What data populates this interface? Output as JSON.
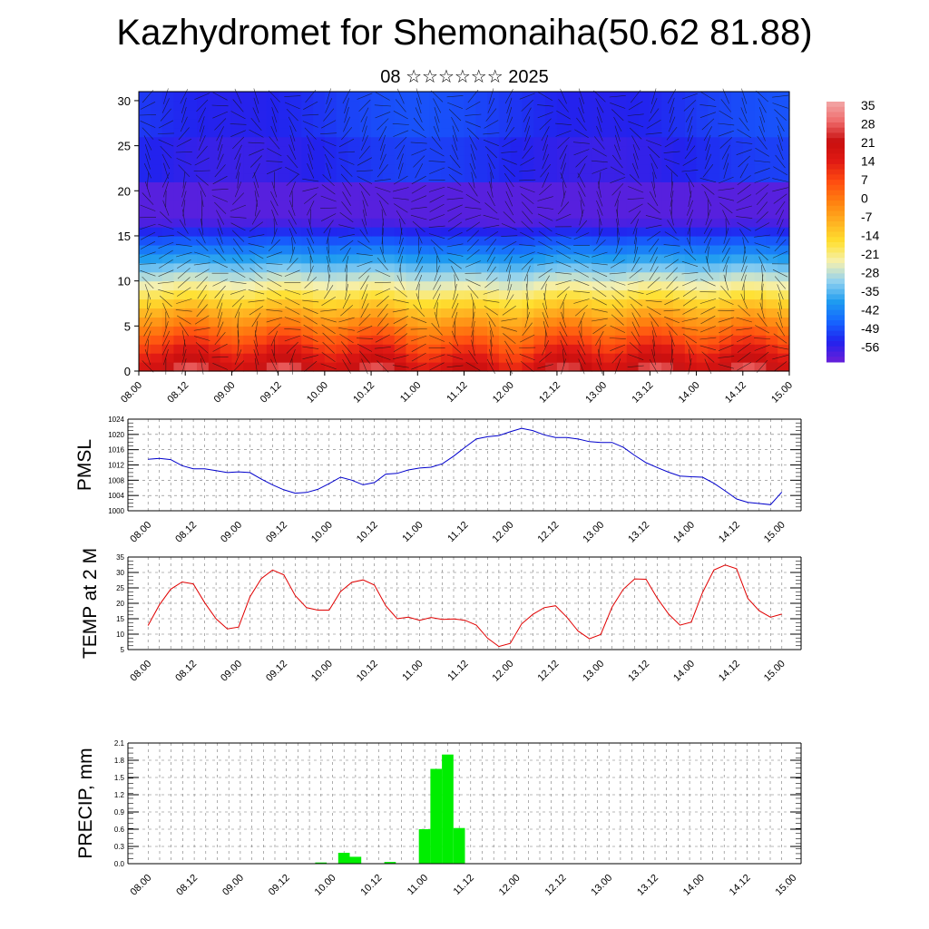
{
  "header": {
    "title": "Kazhydromet for Shemonaiha(50.62 81.88)",
    "subtitle": "08 ☆☆☆☆☆☆ 2025"
  },
  "chart_data": [
    {
      "type": "heatmap",
      "name": "temperature-wind-section",
      "ylim": [
        0,
        31
      ],
      "y_ticks": [
        "0",
        "5",
        "10",
        "15",
        "20",
        "25",
        "30"
      ],
      "x_ticks": [
        "08.00",
        "08.12",
        "09.00",
        "09.12",
        "10.00",
        "10.12",
        "11.00",
        "11.12",
        "12.00",
        "12.12",
        "13.00",
        "13.12",
        "14.00",
        "14.12",
        "15.00"
      ],
      "colorbar_labels": [
        "35",
        "28",
        "21",
        "14",
        "7",
        "0",
        "-7",
        "-14",
        "-21",
        "-28",
        "-35",
        "-42",
        "-49",
        "-56"
      ],
      "colorbar_range": [
        -60,
        38
      ],
      "colors": [
        "#6a1fd8",
        "#2222ee",
        "#1565ff",
        "#1e9cf0",
        "#8fd0f0",
        "#f5f0b0",
        "#ffe030",
        "#ffb020",
        "#ff8010",
        "#ff4c10",
        "#e01a14",
        "#c80e0e",
        "#ef6a6a",
        "#f2a8a8"
      ]
    },
    {
      "type": "line",
      "name": "pmsl",
      "ylabel": "PMSL",
      "ylim": [
        1000,
        1024
      ],
      "y_ticks": [
        "1024",
        "1020",
        "1016",
        "1012",
        "1008",
        "1004",
        "1000"
      ],
      "x_ticks": [
        "08.00",
        "08.12",
        "09.00",
        "09.12",
        "10.00",
        "10.12",
        "11.00",
        "11.12",
        "12.00",
        "12.12",
        "13.00",
        "13.12",
        "14.00",
        "14.12",
        "15.00"
      ],
      "color": "#0000cc",
      "values": [
        1013.5,
        1013.7,
        1013.4,
        1011.8,
        1011.0,
        1011.0,
        1010.5,
        1010.0,
        1010.2,
        1010.0,
        1008.3,
        1006.8,
        1005.5,
        1004.6,
        1004.8,
        1005.6,
        1007.1,
        1008.8,
        1008.0,
        1006.8,
        1007.4,
        1009.6,
        1009.8,
        1010.7,
        1011.2,
        1011.4,
        1012.3,
        1014.3,
        1016.6,
        1018.8,
        1019.4,
        1019.7,
        1020.7,
        1021.6,
        1021.0,
        1019.9,
        1019.2,
        1019.2,
        1018.8,
        1018.1,
        1017.9,
        1017.9,
        1016.6,
        1014.5,
        1012.6,
        1011.3,
        1010.1,
        1009.1,
        1008.9,
        1008.8,
        1007.2,
        1005.2,
        1003.1,
        1002.2,
        1001.9,
        1001.6,
        1004.9
      ]
    },
    {
      "type": "line",
      "name": "temp-2m",
      "ylabel": "TEMP at 2 M",
      "ylim": [
        5,
        35
      ],
      "y_ticks": [
        "35",
        "30",
        "25",
        "20",
        "15",
        "10",
        "5"
      ],
      "x_ticks": [
        "08.00",
        "08.12",
        "09.00",
        "09.12",
        "10.00",
        "10.12",
        "11.00",
        "11.12",
        "12.00",
        "12.12",
        "13.00",
        "13.12",
        "14.00",
        "14.12",
        "15.00"
      ],
      "color": "#e00000",
      "values": [
        12.8,
        19.5,
        24.6,
        26.9,
        26.3,
        20.2,
        15.0,
        11.7,
        12.3,
        22.1,
        28.0,
        30.8,
        29.2,
        22.5,
        18.6,
        17.8,
        17.8,
        23.8,
        26.8,
        27.6,
        25.9,
        19.2,
        15.0,
        15.5,
        14.5,
        15.4,
        14.8,
        14.9,
        14.5,
        12.9,
        8.7,
        6.0,
        7.0,
        13.3,
        16.4,
        18.6,
        19.2,
        15.5,
        11.0,
        8.5,
        9.9,
        18.8,
        24.6,
        27.9,
        27.8,
        21.6,
        16.5,
        12.9,
        13.9,
        23.5,
        30.8,
        32.4,
        31.2,
        21.6,
        17.6,
        15.5,
        16.5
      ]
    },
    {
      "type": "bar",
      "name": "precip",
      "ylabel": "PRECIP, mm",
      "ylim": [
        0,
        2.1
      ],
      "y_ticks": [
        "2.1",
        "1.8",
        "1.5",
        "1.2",
        "0.9",
        "0.6",
        "0.3",
        "0.0"
      ],
      "x_ticks": [
        "08.00",
        "08.12",
        "09.00",
        "09.12",
        "10.00",
        "10.12",
        "11.00",
        "11.12",
        "12.00",
        "12.12",
        "13.00",
        "13.12",
        "14.00",
        "14.12",
        "15.00"
      ],
      "color": "#00ee00",
      "values": [
        0,
        0,
        0,
        0,
        0,
        0,
        0,
        0,
        0,
        0,
        0,
        0,
        0,
        0,
        0,
        0.02,
        0,
        0.19,
        0.12,
        0,
        0,
        0.03,
        0,
        0,
        0.6,
        1.65,
        1.9,
        0.62,
        0,
        0,
        0,
        0,
        0,
        0,
        0,
        0,
        0,
        0,
        0,
        0,
        0,
        0,
        0,
        0,
        0,
        0,
        0,
        0,
        0,
        0,
        0,
        0,
        0,
        0,
        0,
        0
      ]
    }
  ]
}
